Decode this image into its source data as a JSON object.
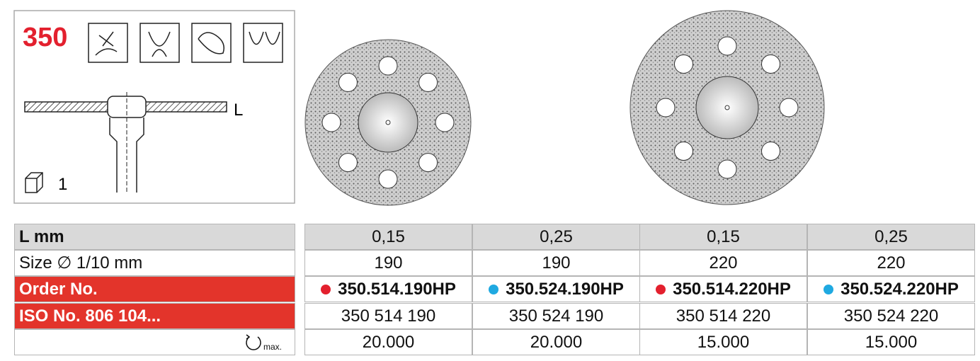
{
  "header": {
    "code": "350",
    "length_label": "L",
    "pack_qty": "1"
  },
  "table": {
    "rows": [
      {
        "label": "L mm",
        "cells": [
          "0,15",
          "0,25",
          "0,15",
          "0,25"
        ]
      },
      {
        "label": "Size ∅ 1/10 mm",
        "cells": [
          "190",
          "190",
          "220",
          "220"
        ]
      },
      {
        "label": "Order No.",
        "cells": [
          "350.514.190HP",
          "350.524.190HP",
          "350.514.220HP",
          "350.524.220HP"
        ],
        "dot_colors": [
          "#e3202e",
          "#1fa9e1",
          "#e3202e",
          "#1fa9e1"
        ]
      },
      {
        "label": "ISO No. 806 104...",
        "cells": [
          "350 514 190",
          "350 524 190",
          "350 514 220",
          "350 524 220"
        ]
      },
      {
        "label": "max.",
        "cells": [
          "20.000",
          "20.000",
          "15.000",
          "15.000"
        ]
      }
    ]
  }
}
